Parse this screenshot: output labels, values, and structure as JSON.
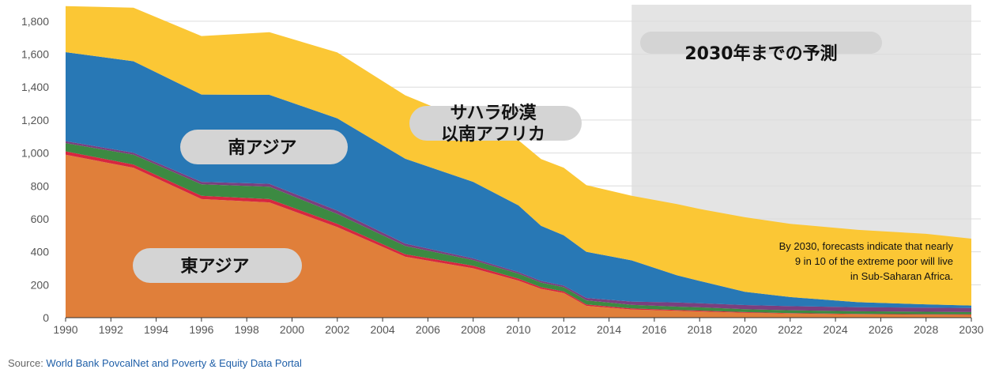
{
  "chart_data": {
    "type": "area",
    "stacked": true,
    "x": [
      1990,
      1993,
      1996,
      1999,
      2002,
      2005,
      2008,
      2010,
      2011,
      2012,
      2013,
      2015,
      2017,
      2018,
      2020,
      2022,
      2025,
      2028,
      2030
    ],
    "xticks": [
      1990,
      1992,
      1994,
      1996,
      1998,
      2000,
      2002,
      2004,
      2006,
      2008,
      2010,
      2012,
      2014,
      2016,
      2018,
      2020,
      2022,
      2024,
      2026,
      2028,
      2030
    ],
    "yticks": [
      "0",
      "200",
      "400",
      "600",
      "800",
      "1,000",
      "1,200",
      "1,400",
      "1,600",
      "1,800"
    ],
    "ylim": [
      0,
      1900
    ],
    "xlim": [
      1990,
      2030
    ],
    "grid": true,
    "series": [
      {
        "key": "east-asia",
        "color": "#e07f3a",
        "values": [
          990,
          910,
          720,
          700,
          550,
          370,
          300,
          225,
          175,
          150,
          72,
          50,
          42,
          38,
          30,
          25,
          20,
          18,
          17
        ]
      },
      {
        "key": "other-red",
        "color": "#d6273f",
        "values": [
          20,
          20,
          20,
          20,
          20,
          15,
          15,
          12,
          10,
          10,
          8,
          6,
          5,
          5,
          4,
          3,
          3,
          3,
          3
        ]
      },
      {
        "key": "other-green",
        "color": "#3c8a42",
        "values": [
          50,
          60,
          70,
          75,
          60,
          50,
          35,
          30,
          28,
          25,
          25,
          22,
          20,
          20,
          18,
          17,
          16,
          15,
          14
        ]
      },
      {
        "key": "other-purple",
        "color": "#7b3f7e",
        "values": [
          12,
          12,
          15,
          18,
          20,
          15,
          10,
          10,
          10,
          10,
          15,
          20,
          25,
          25,
          25,
          25,
          25,
          25,
          25
        ]
      },
      {
        "key": "south-asia",
        "color": "#2878b5",
        "values": [
          540,
          555,
          530,
          540,
          560,
          515,
          465,
          405,
          335,
          305,
          280,
          250,
          165,
          135,
          80,
          55,
          30,
          20,
          15
        ]
      },
      {
        "key": "sub-saharan-africa",
        "color": "#fbc735",
        "values": [
          280,
          325,
          355,
          380,
          400,
          385,
          355,
          395,
          405,
          410,
          405,
          392,
          433,
          437,
          453,
          445,
          439,
          428,
          406
        ]
      }
    ],
    "forecast_region": {
      "from": 2015,
      "to": 2030,
      "color": "#e4e4e4"
    }
  },
  "labels": {
    "forecast": "2030年までの予測",
    "south_asia": "南アジア",
    "sub_saharan_line1": "サハラ砂漠",
    "sub_saharan_line2": "以南アフリカ",
    "east_asia": "東アジア",
    "note_line1": "By 2030, forecasts indicate that nearly",
    "note_line2": "9 in 10 of the extreme poor will live",
    "note_line3": "in Sub-Saharan Africa."
  },
  "source": {
    "prefix": "Source: ",
    "link": "World Bank PovcalNet and Poverty & Equity Data Portal"
  }
}
